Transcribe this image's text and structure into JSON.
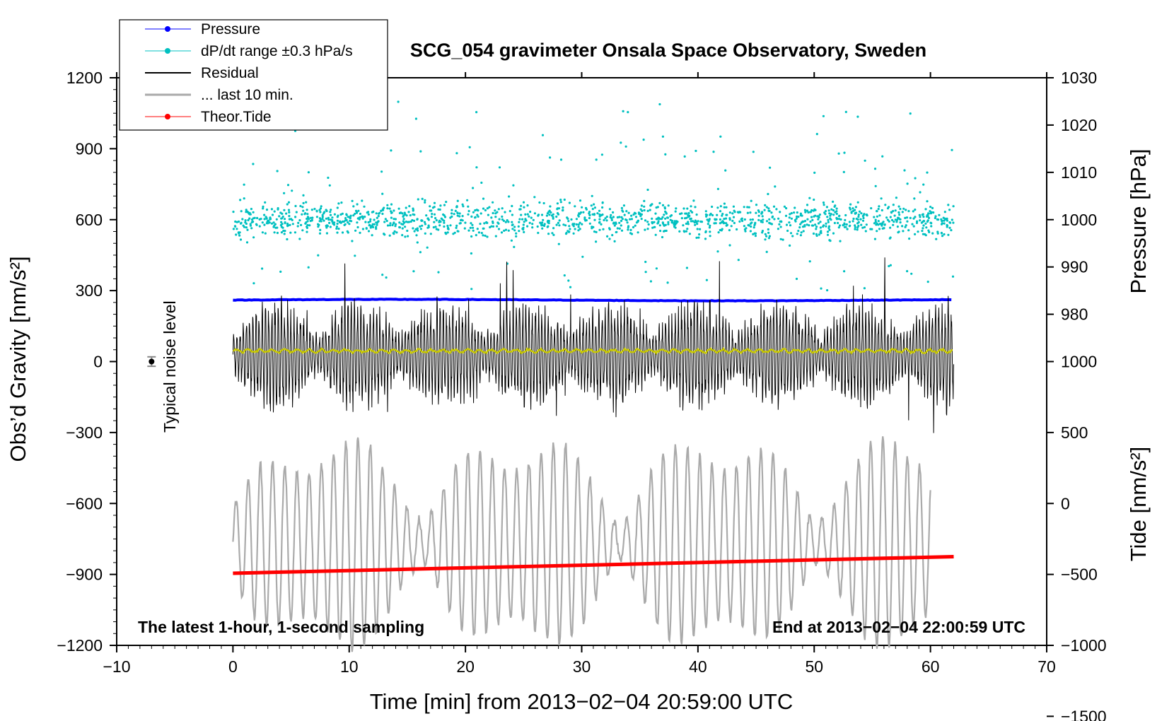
{
  "chart_data": {
    "type": "line",
    "title": "SCG_054 gravimeter Onsala Space Observatory, Sweden",
    "xlabel": "Time [min] from 2013−02−04 20:59:00 UTC",
    "xlim": [
      -10,
      70
    ],
    "x_ticks": [
      -10,
      0,
      10,
      20,
      30,
      40,
      50,
      60,
      70
    ],
    "x_tick_labels": [
      "−10",
      "0",
      "10",
      "20",
      "30",
      "40",
      "50",
      "60",
      "70"
    ],
    "left_axis": {
      "label": "Obs’d Gravity [nm/s²]",
      "ylim": [
        -1200,
        1200
      ],
      "ticks": [
        1200,
        900,
        600,
        300,
        0,
        -300,
        -600,
        -900,
        -1200
      ],
      "tick_labels": [
        "1200",
        "900",
        "600",
        "300",
        "0",
        "−300",
        "−600",
        "−900",
        "−1200"
      ]
    },
    "right_axis_pressure": {
      "label": "Pressure [hPa]",
      "ticks": [
        1030,
        1020,
        1010,
        1000,
        990,
        980
      ],
      "tick_labels": [
        "1030",
        "1020",
        "1010",
        "1000",
        "990",
        "980"
      ]
    },
    "right_axis_tide": {
      "label": "Tide [nm/s²]",
      "ticks": [
        1000,
        500,
        0,
        -500,
        -1000,
        -1500
      ],
      "tick_labels": [
        "1000",
        "500",
        "0",
        "−500",
        "−1000",
        "−1500"
      ]
    },
    "series": [
      {
        "name": "Pressure",
        "color": "#0000ff",
        "style": "line-dots",
        "x_range": [
          0,
          62
        ],
        "value_hpa": 983,
        "note": "nearly constant"
      },
      {
        "name": "dP/dt range ±0.3 hPa/s",
        "color": "#00c0c0",
        "style": "dots",
        "x_range": [
          0,
          62
        ],
        "center_gravity_units": 600,
        "core_spread": 60,
        "max_outlier": 1110
      },
      {
        "name": "Residual",
        "color": "#000000",
        "style": "line",
        "x_range": [
          0,
          62
        ],
        "center": 30,
        "typical_amplitude": 200,
        "extremes": [
          -400,
          500
        ]
      },
      {
        "name": "... last 10 min.",
        "color": "#aaaaaa",
        "style": "line",
        "x_range": [
          0,
          60
        ],
        "center": -770,
        "amplitude_range": [
          150,
          450
        ]
      },
      {
        "name": "Theor.Tide",
        "color": "#ff0000",
        "style": "line-dots",
        "x": [
          0,
          62
        ],
        "y": [
          -895,
          -825
        ]
      }
    ],
    "smoothed_residual": {
      "color": "#c8c800",
      "level": 45
    },
    "noise_level": {
      "label": "Typical noise level",
      "x": -7,
      "y": 0,
      "error": 20
    }
  },
  "legend": {
    "items": [
      {
        "label": "Pressure",
        "color": "#0000ff",
        "marker": true,
        "width": 1
      },
      {
        "label": "dP/dt range ±0.3 hPa/s",
        "color": "#00c0c0",
        "marker": true,
        "width": 1
      },
      {
        "label": "Residual",
        "color": "#000000",
        "marker": false,
        "width": 2
      },
      {
        "label": "... last 10 min.",
        "color": "#aaaaaa",
        "marker": false,
        "width": 3
      },
      {
        "label": "Theor.Tide",
        "color": "#ff0000",
        "marker": true,
        "width": 1
      }
    ]
  },
  "annotations": {
    "bottom_left": "The latest 1-hour, 1-second sampling",
    "bottom_right": "End at 2013−02−04 22:00:59 UTC"
  }
}
